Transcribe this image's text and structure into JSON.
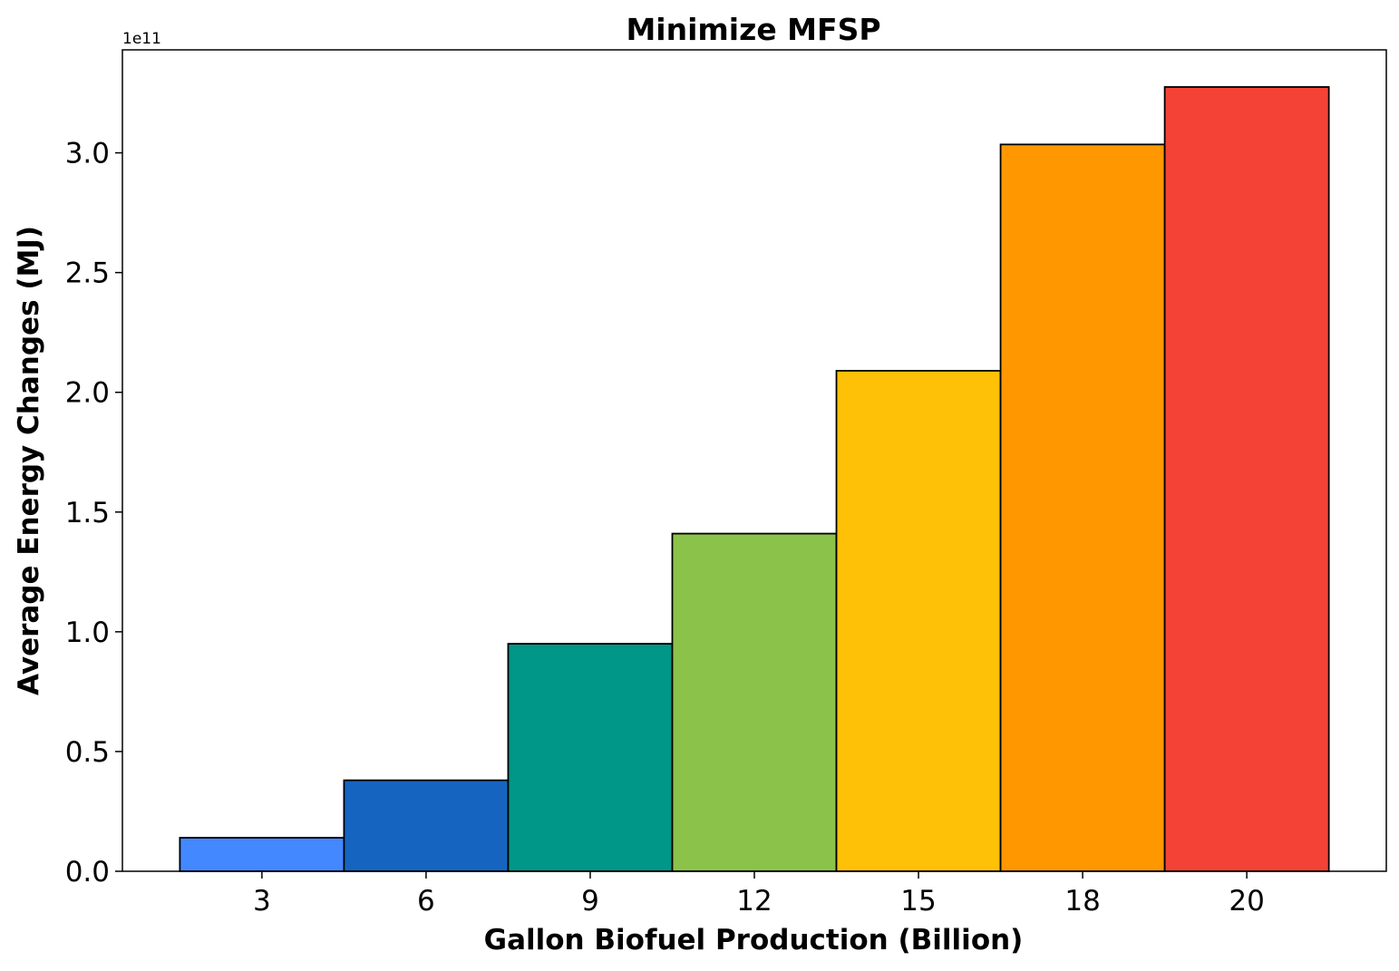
{
  "chart_data": {
    "type": "bar",
    "title": "Minimize MFSP",
    "xlabel": "Gallon Biofuel Production (Billion)",
    "ylabel": "Average Energy Changes (MJ)",
    "y_offset_label": "1e11",
    "categories": [
      "3",
      "6",
      "9",
      "12",
      "15",
      "18",
      "20"
    ],
    "values": [
      14000000000,
      38000000000,
      95000000000,
      141000000000,
      209000000000,
      303500000000,
      327500000000
    ],
    "colors": [
      "#4488FF",
      "#1565C0",
      "#009688",
      "#8BC34A",
      "#FFC107",
      "#FF9800",
      "#F44336"
    ],
    "ylim": [
      0,
      343000000000
    ],
    "yticks": [
      0,
      50000000000,
      100000000000,
      150000000000,
      200000000000,
      250000000000,
      300000000000
    ],
    "ytick_labels": [
      "0.0",
      "0.5",
      "1.0",
      "1.5",
      "2.0",
      "2.5",
      "3.0"
    ],
    "grid": false,
    "legend": "none"
  }
}
